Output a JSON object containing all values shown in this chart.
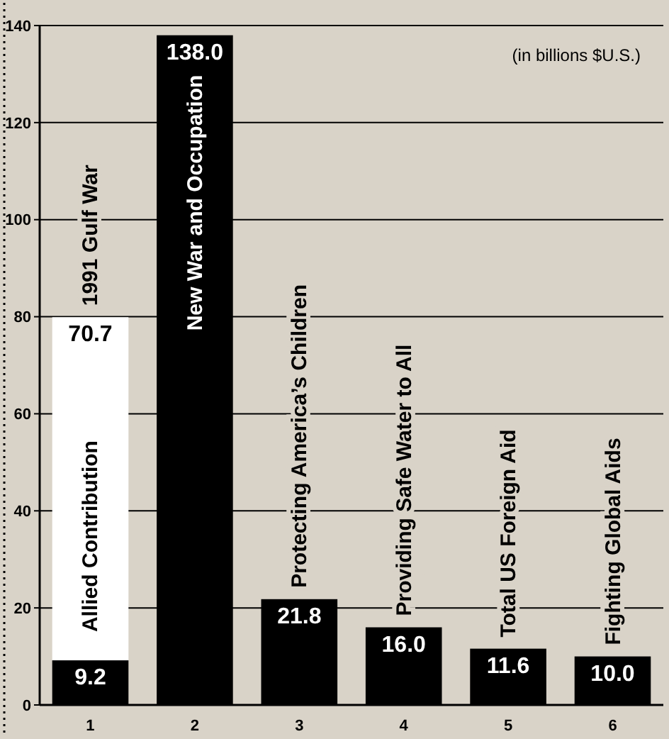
{
  "chart_data": {
    "type": "bar",
    "stacked": true,
    "categories": [
      "1",
      "2",
      "3",
      "4",
      "5",
      "6"
    ],
    "series": [
      {
        "color": "#000000",
        "values": [
          9.2,
          138.0,
          21.8,
          16.0,
          11.6,
          10.0
        ],
        "value_labels": [
          "9.2",
          "138.0",
          "21.8",
          "16.0",
          "11.6",
          "10.0"
        ]
      },
      {
        "name": "Allied Contribution",
        "color": "#ffffff",
        "values": [
          70.7,
          null,
          null,
          null,
          null,
          null
        ],
        "value_labels": [
          "70.7",
          null,
          null,
          null,
          null,
          null
        ]
      }
    ],
    "ylim": [
      0,
      140
    ],
    "yticks": [
      0,
      20,
      40,
      60,
      80,
      100,
      120,
      140
    ],
    "grid": "y",
    "annotations": [
      {
        "text": "1991 Gulf War",
        "x": "1",
        "y": 79.9
      },
      {
        "text": "New War and Occupation",
        "x": "2",
        "y": 138.0
      },
      {
        "text": "Protecting America’s Children",
        "x": "3",
        "y": 21.8
      },
      {
        "text": "Providing Safe Water to All",
        "x": "4",
        "y": 16.0
      },
      {
        "text": "Total US Foreign Aid",
        "x": "5",
        "y": 11.6
      },
      {
        "text": "Fighting Global Aids",
        "x": "6",
        "y": 10.0
      },
      "(in billions $U.S.)"
    ]
  }
}
